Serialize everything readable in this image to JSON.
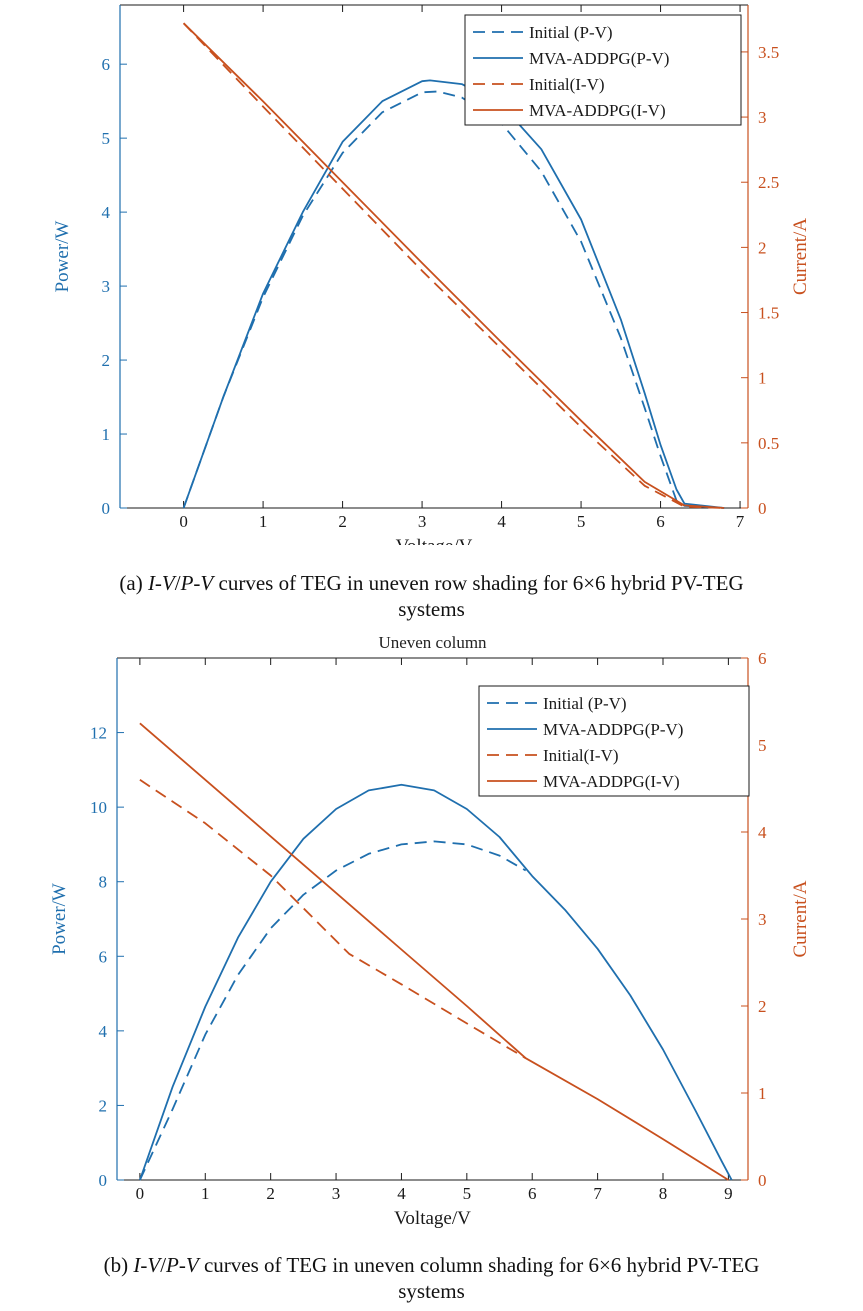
{
  "colors": {
    "blue": "#1f6fae",
    "orange": "#c8501e",
    "frame": "#1a1a1a"
  },
  "captions": {
    "a": {
      "prefix": "(a) ",
      "iv": "I-V",
      "slash": "/",
      "pv": "P-V",
      "rest": " curves of TEG in uneven row shading for 6×6 hybrid PV-TEG",
      "line2": "systems"
    },
    "b": {
      "prefix": "(b) ",
      "iv": "I-V",
      "slash": "/",
      "pv": "P-V",
      "rest": " curves of TEG in uneven column shading for 6×6 hybrid PV-TEG",
      "line2": "systems"
    }
  },
  "chart_data": [
    {
      "type": "line",
      "title": "",
      "xlabel": "Voltage/V",
      "ylabel": "Power/W",
      "y2label": "Current/A",
      "xlim": [
        -0.8,
        7.1
      ],
      "ylim": [
        0,
        6.8
      ],
      "y2lim": [
        0,
        3.86
      ],
      "xticks": [
        0,
        1,
        2,
        3,
        4,
        5,
        6,
        7
      ],
      "yticks": [
        0,
        1,
        2,
        3,
        4,
        5,
        6
      ],
      "y2ticks": [
        0,
        0.5,
        1,
        1.5,
        2,
        2.5,
        3,
        3.5
      ],
      "legend_position": "top-right",
      "series": [
        {
          "name": "Initial (P-V)",
          "axis": "left",
          "style": "dashed",
          "color": "#1f6fae",
          "x": [
            0,
            0.5,
            1,
            1.5,
            2,
            2.5,
            3,
            3.2,
            3.5,
            4,
            4.5,
            5,
            5.5,
            5.8,
            6,
            6.2,
            6.3,
            6.8
          ],
          "y": [
            0,
            1.5,
            2.85,
            3.95,
            4.8,
            5.35,
            5.62,
            5.63,
            5.55,
            5.2,
            4.55,
            3.6,
            2.3,
            1.35,
            0.7,
            0.1,
            0.03,
            0
          ]
        },
        {
          "name": "MVA-ADDPG(P-V)",
          "axis": "left",
          "style": "solid",
          "color": "#1f6fae",
          "x": [
            0,
            0.5,
            1,
            1.5,
            2,
            2.5,
            3,
            3.1,
            3.5,
            4,
            4.5,
            5,
            5.5,
            5.8,
            6,
            6.2,
            6.3,
            6.8
          ],
          "y": [
            0,
            1.5,
            2.9,
            4.0,
            4.95,
            5.5,
            5.77,
            5.78,
            5.73,
            5.45,
            4.85,
            3.9,
            2.55,
            1.55,
            0.85,
            0.25,
            0.06,
            0
          ]
        },
        {
          "name": "Initial(I-V)",
          "axis": "right",
          "style": "dashed",
          "color": "#c8501e",
          "x": [
            0,
            1,
            2,
            3,
            4,
            5,
            5.8,
            6.3,
            6.8
          ],
          "y": [
            3.72,
            3.08,
            2.45,
            1.82,
            1.22,
            0.62,
            0.17,
            0.01,
            0
          ]
        },
        {
          "name": "MVA-ADDPG(I-V)",
          "axis": "right",
          "style": "solid",
          "color": "#c8501e",
          "x": [
            0,
            1,
            2,
            3,
            4,
            5,
            5.8,
            6.3,
            6.8
          ],
          "y": [
            3.72,
            3.12,
            2.5,
            1.88,
            1.27,
            0.67,
            0.2,
            0.02,
            0
          ]
        }
      ]
    },
    {
      "type": "line",
      "title": "Uneven column",
      "xlabel": "Voltage/V",
      "ylabel": "Power/W",
      "y2label": "Current/A",
      "xlim": [
        -0.35,
        9.3
      ],
      "ylim": [
        0,
        14
      ],
      "y2lim": [
        0,
        6
      ],
      "xticks": [
        0,
        1,
        2,
        3,
        4,
        5,
        6,
        7,
        8,
        9
      ],
      "yticks": [
        0,
        2,
        4,
        6,
        8,
        10,
        12
      ],
      "y2ticks": [
        0,
        1,
        2,
        3,
        4,
        5,
        6
      ],
      "legend_position": "top-right",
      "series": [
        {
          "name": "Initial (P-V)",
          "axis": "left",
          "style": "dashed",
          "color": "#1f6fae",
          "x": [
            0,
            0.5,
            1,
            1.5,
            2,
            2.5,
            3,
            3.5,
            4,
            4.5,
            5,
            5.5,
            5.9
          ],
          "y": [
            0,
            1.9,
            3.9,
            5.5,
            6.75,
            7.65,
            8.3,
            8.75,
            9.0,
            9.08,
            9.0,
            8.7,
            8.3
          ]
        },
        {
          "name": "MVA-ADDPG(P-V)",
          "axis": "left",
          "style": "solid",
          "color": "#1f6fae",
          "x": [
            0,
            0.5,
            1,
            1.5,
            2,
            2.5,
            3,
            3.5,
            4,
            4.5,
            5,
            5.5,
            6,
            6.5,
            7,
            7.5,
            8,
            8.5,
            8.9,
            9.05
          ],
          "y": [
            0,
            2.5,
            4.65,
            6.5,
            8.0,
            9.15,
            9.95,
            10.45,
            10.6,
            10.45,
            9.95,
            9.2,
            8.15,
            7.25,
            6.2,
            4.95,
            3.5,
            1.85,
            0.5,
            0
          ]
        },
        {
          "name": "Initial(I-V)",
          "axis": "right",
          "style": "dashed",
          "color": "#c8501e",
          "x": [
            0,
            1,
            2,
            3.2,
            4,
            5,
            5.9
          ],
          "y": [
            4.6,
            4.1,
            3.5,
            2.6,
            2.25,
            1.8,
            1.4
          ]
        },
        {
          "name": "MVA-ADDPG(I-V)",
          "axis": "right",
          "style": "solid",
          "color": "#c8501e",
          "x": [
            0,
            1,
            2,
            3,
            4,
            5,
            5.9,
            7,
            8,
            9
          ],
          "y": [
            5.25,
            4.6,
            3.95,
            3.3,
            2.65,
            2.0,
            1.4,
            0.93,
            0.47,
            0
          ]
        }
      ]
    }
  ]
}
